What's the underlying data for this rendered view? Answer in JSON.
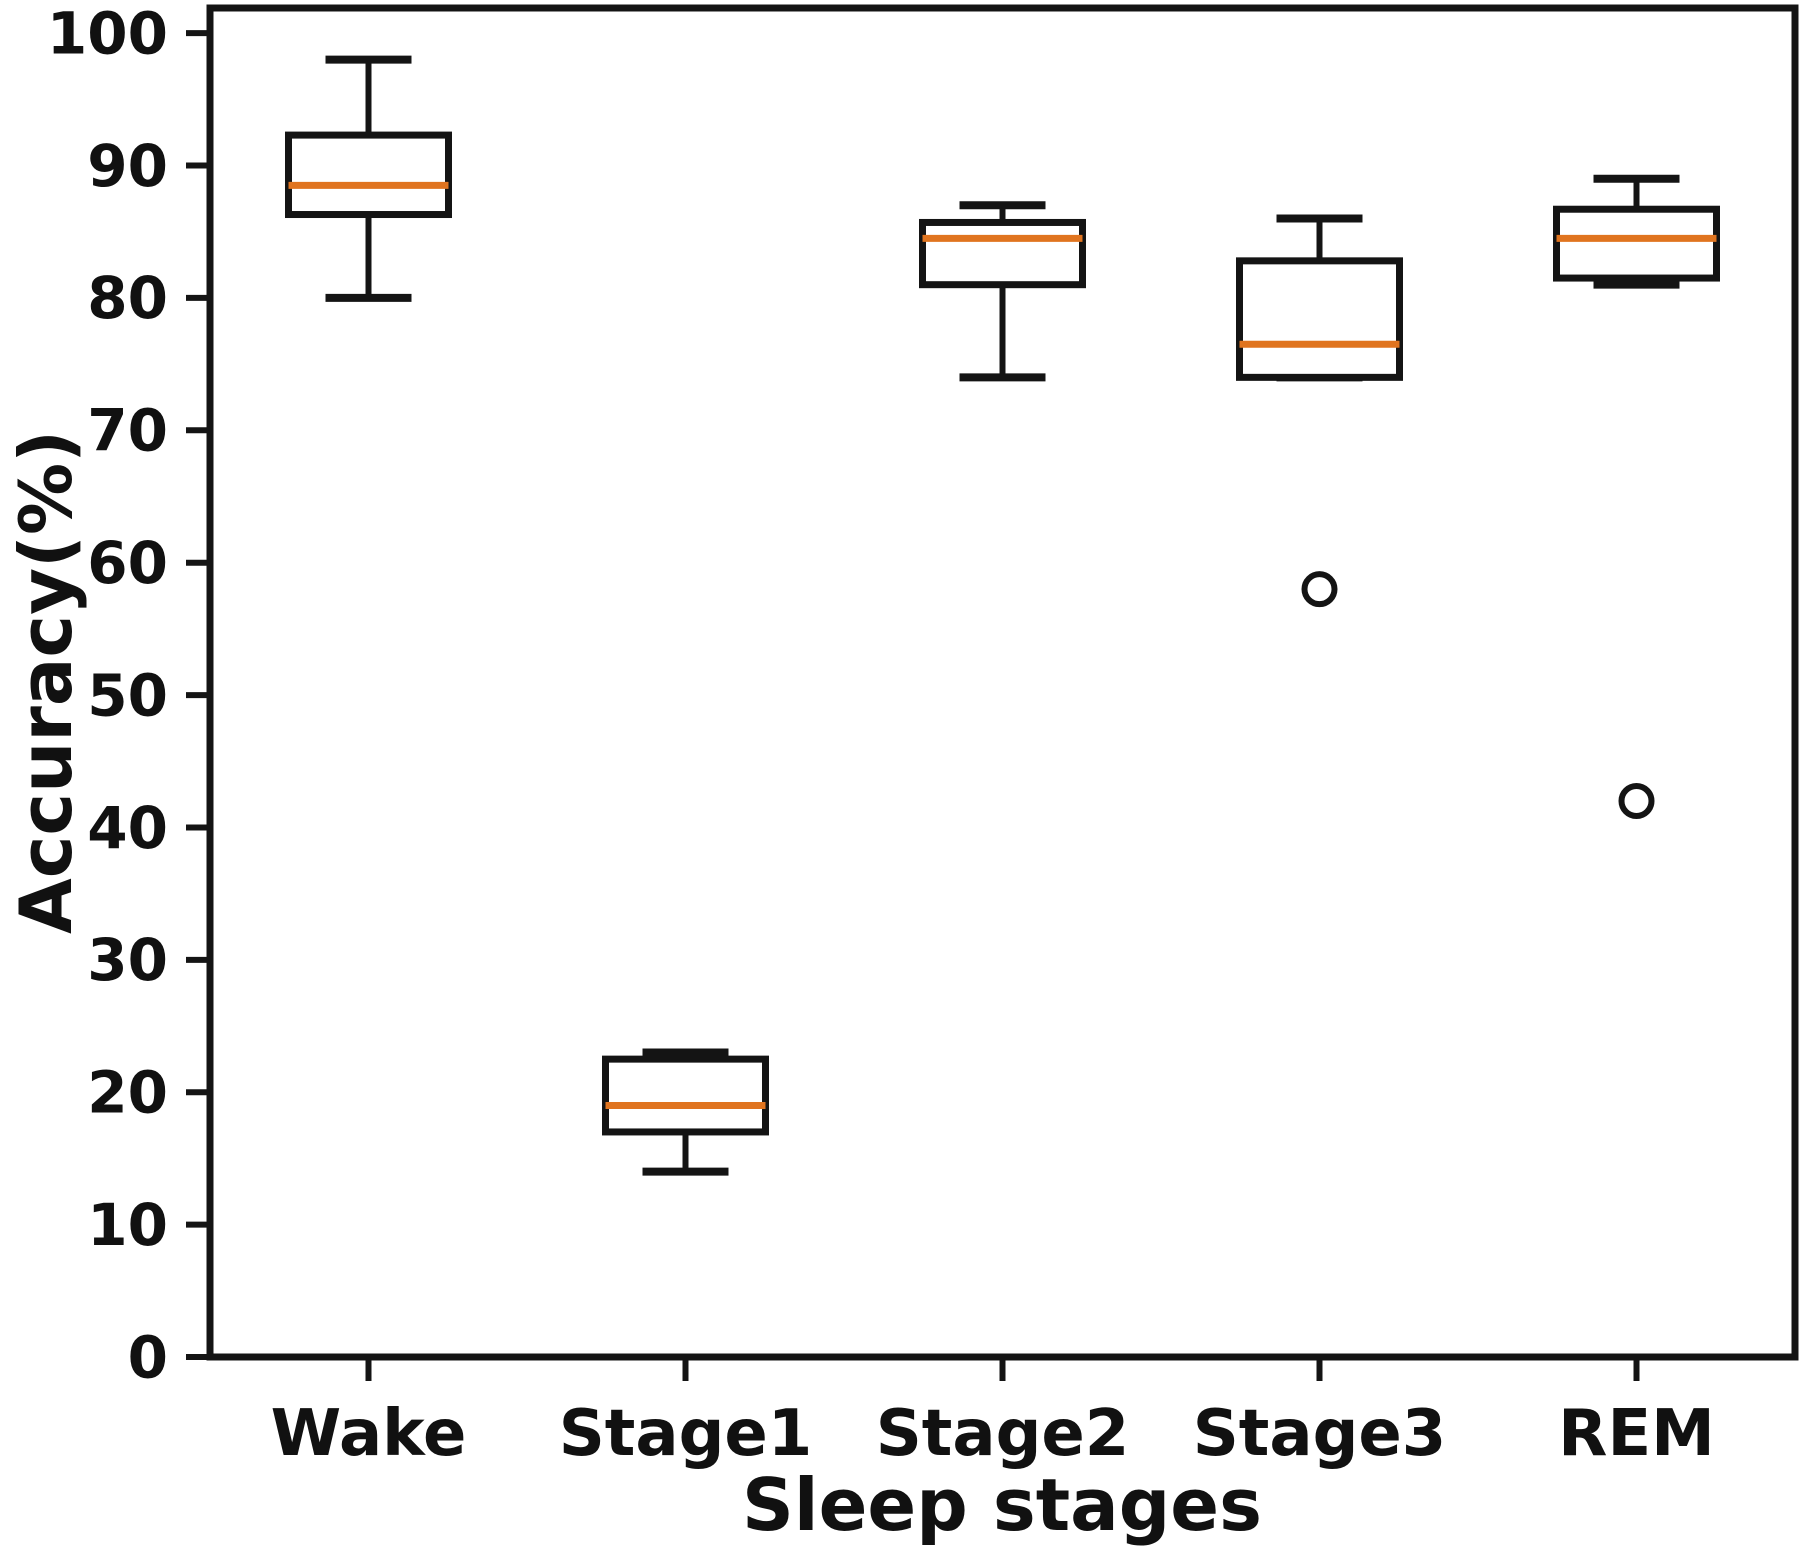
{
  "figure": {
    "background_color": "#ffffff",
    "kind": "boxplot-figure"
  },
  "chart_data": {
    "type": "box",
    "title": "",
    "xlabel": "Sleep stages",
    "ylabel": "Accuracy(%)",
    "categories": [
      "Wake",
      "Stage1",
      "Stage2",
      "Stage3",
      "REM"
    ],
    "yticks": [
      0,
      10,
      20,
      30,
      40,
      50,
      60,
      70,
      80,
      90,
      100
    ],
    "ylim": [
      0,
      101.9
    ],
    "grid": false,
    "legend_position": "none",
    "series": [
      {
        "label": "Wake",
        "whislo": 80,
        "q1": 86.3,
        "med": 88.5,
        "q3": 92.3,
        "whishi": 98,
        "fliers": []
      },
      {
        "label": "Stage1",
        "whislo": 14,
        "q1": 17,
        "med": 19,
        "q3": 22.5,
        "whishi": 23,
        "fliers": []
      },
      {
        "label": "Stage2",
        "whislo": 74,
        "q1": 81,
        "med": 84.5,
        "q3": 85.7,
        "whishi": 87,
        "fliers": []
      },
      {
        "label": "Stage3",
        "whislo": 74,
        "q1": 74,
        "med": 76.5,
        "q3": 82.8,
        "whishi": 86,
        "fliers": [
          58
        ]
      },
      {
        "label": "REM",
        "whislo": 81,
        "q1": 81.5,
        "med": 84.5,
        "q3": 86.7,
        "whishi": 89,
        "fliers": [
          42
        ]
      }
    ],
    "colors": {
      "box_edge": "#141414",
      "median": "#e0741f",
      "box_fill": "#ffffff",
      "background": "#ffffff"
    }
  }
}
